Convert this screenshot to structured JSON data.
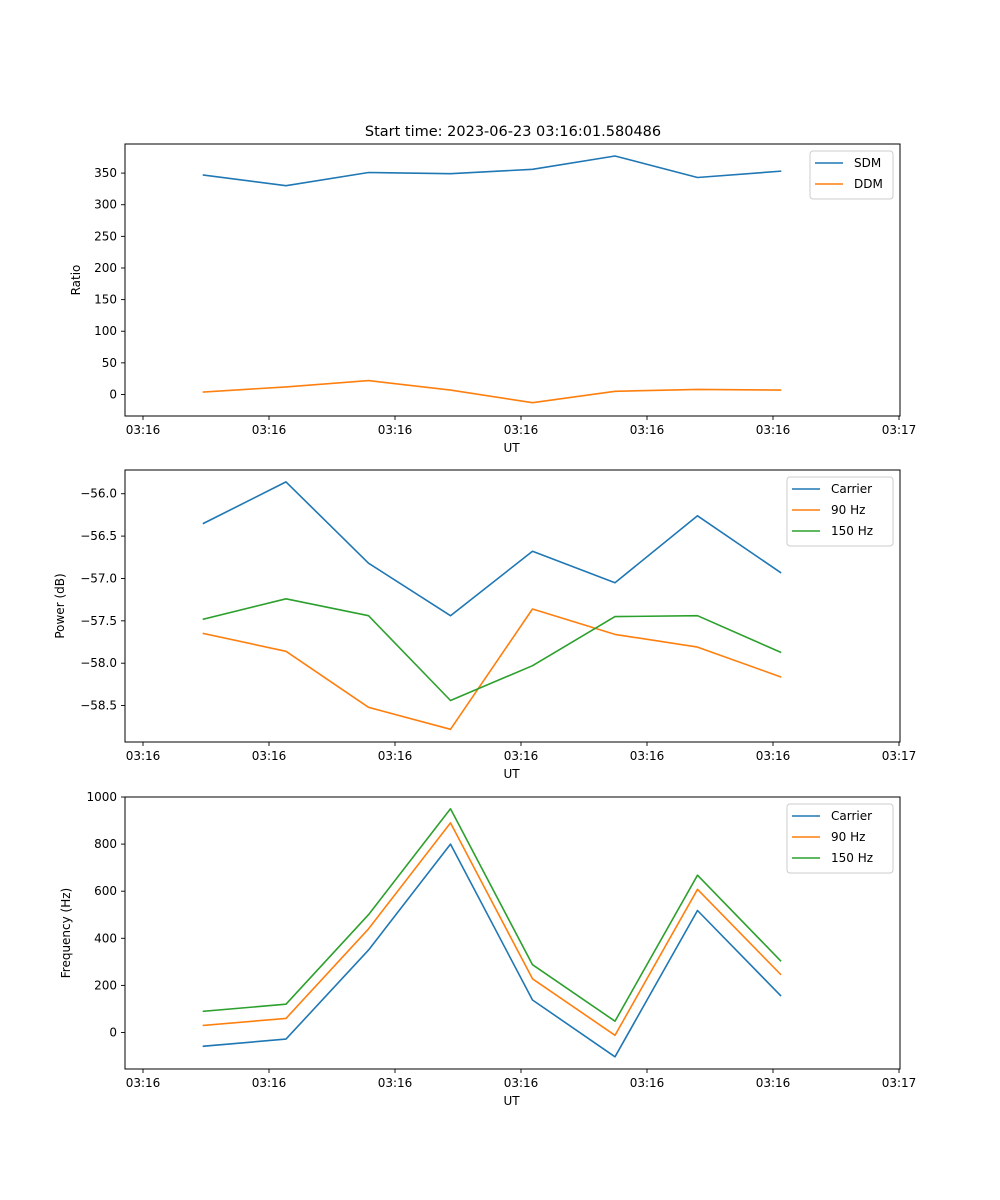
{
  "figure_title": "Start time: 2023-06-23 03:16:01.580486",
  "colors": {
    "blue": "#1f77b4",
    "orange": "#ff7f0e",
    "green": "#2ca02c"
  },
  "chart_data": [
    {
      "type": "line",
      "title": "Start time: 2023-06-23 03:16:01.580486",
      "xlabel": "UT",
      "ylabel": "Ratio",
      "x": [
        1,
        2,
        3,
        4,
        5,
        6,
        7,
        8
      ],
      "x_tick_labels": [
        "03:16",
        "03:16",
        "03:16",
        "03:16",
        "03:16",
        "03:16",
        "03:16",
        "03:17"
      ],
      "y_ticks": [
        0,
        50,
        100,
        150,
        200,
        250,
        300,
        350
      ],
      "ylim": [
        -34,
        396
      ],
      "legend": "top-right",
      "series": [
        {
          "name": "SDM",
          "color": "#1f77b4",
          "values": [
            347,
            330,
            351,
            349,
            356,
            377,
            343,
            353
          ]
        },
        {
          "name": "DDM",
          "color": "#ff7f0e",
          "values": [
            4,
            12,
            22,
            7,
            -13,
            5,
            8,
            7
          ]
        }
      ]
    },
    {
      "type": "line",
      "title": "",
      "xlabel": "UT",
      "ylabel": "Power (dB)",
      "x": [
        1,
        2,
        3,
        4,
        5,
        6,
        7,
        8
      ],
      "x_tick_labels": [
        "03:16",
        "03:16",
        "03:16",
        "03:16",
        "03:16",
        "03:16",
        "03:16",
        "03:17"
      ],
      "y_ticks": [
        -58.5,
        -58.0,
        -57.5,
        -57.0,
        -56.5,
        -56.0
      ],
      "y_tick_labels": [
        "−58.5",
        "−58.0",
        "−57.5",
        "−57.0",
        "−56.5",
        "−56.0"
      ],
      "ylim": [
        -58.93,
        -55.72
      ],
      "legend": "top-right",
      "series": [
        {
          "name": "Carrier",
          "color": "#1f77b4",
          "values": [
            -56.35,
            -55.86,
            -56.82,
            -57.44,
            -56.68,
            -57.05,
            -56.26,
            -56.93
          ]
        },
        {
          "name": "90 Hz",
          "color": "#ff7f0e",
          "values": [
            -57.65,
            -57.86,
            -58.52,
            -58.78,
            -57.36,
            -57.66,
            -57.81,
            -58.16
          ]
        },
        {
          "name": "150 Hz",
          "color": "#2ca02c",
          "values": [
            -57.48,
            -57.24,
            -57.44,
            -58.44,
            -58.03,
            -57.45,
            -57.44,
            -57.87
          ]
        }
      ]
    },
    {
      "type": "line",
      "title": "",
      "xlabel": "UT",
      "ylabel": "Frequency (Hz)",
      "x": [
        1,
        2,
        3,
        4,
        5,
        6,
        7,
        8
      ],
      "x_tick_labels": [
        "03:16",
        "03:16",
        "03:16",
        "03:16",
        "03:16",
        "03:16",
        "03:16",
        "03:17"
      ],
      "y_ticks": [
        0,
        200,
        400,
        600,
        800,
        1000
      ],
      "y_tick_labels": [
        "0",
        "200",
        "400",
        "600",
        "800",
        "1000"
      ],
      "ylim": [
        -155,
        1000
      ],
      "legend": "top-right",
      "series": [
        {
          "name": "Carrier",
          "color": "#1f77b4",
          "values": [
            -58,
            -28,
            350,
            800,
            138,
            -103,
            518,
            157
          ]
        },
        {
          "name": "90 Hz",
          "color": "#ff7f0e",
          "values": [
            30,
            60,
            440,
            890,
            228,
            -12,
            608,
            247
          ]
        },
        {
          "name": "150 Hz",
          "color": "#2ca02c",
          "values": [
            90,
            120,
            500,
            950,
            288,
            48,
            668,
            305
          ]
        }
      ]
    }
  ]
}
